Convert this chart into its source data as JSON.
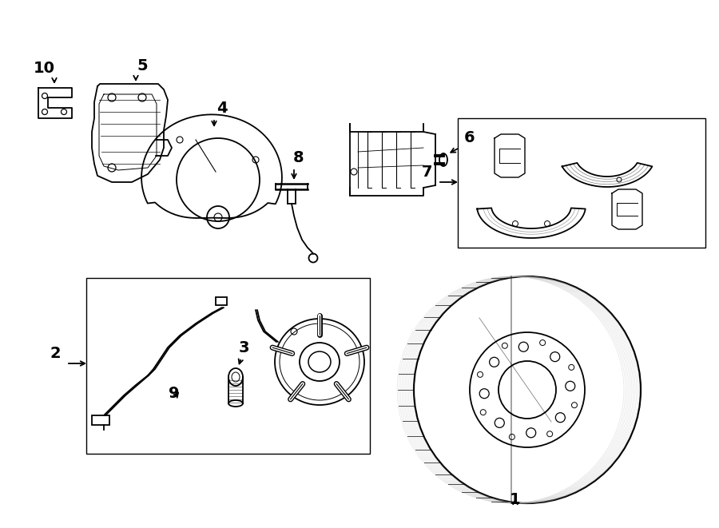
{
  "bg_color": "#ffffff",
  "line_color": "#000000",
  "lw": 1.3,
  "fig_w": 9.0,
  "fig_h": 6.61,
  "font_size": 14
}
